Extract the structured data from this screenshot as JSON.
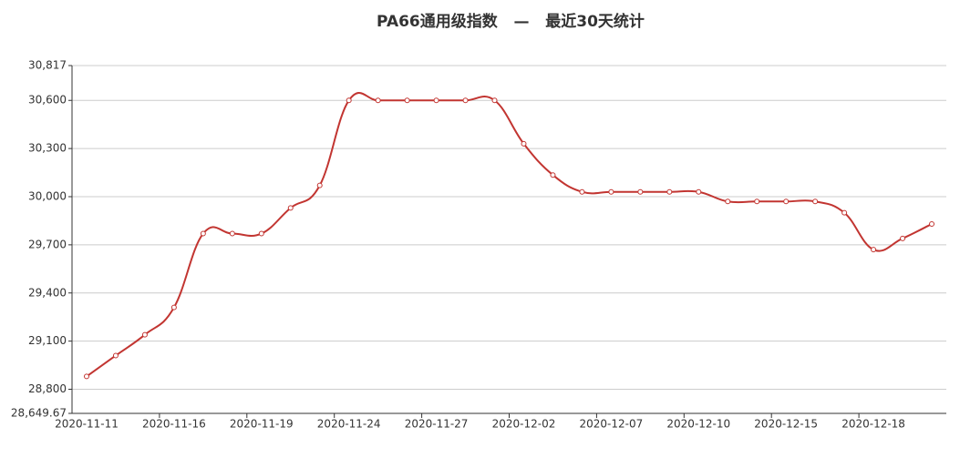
{
  "chart_data": {
    "type": "line",
    "title": "PA66通用级指数   —   最近30天统计",
    "categories": [
      "2020-11-11",
      null,
      null,
      "2020-11-16",
      null,
      null,
      "2020-11-19",
      null,
      null,
      "2020-11-24",
      null,
      null,
      "2020-11-27",
      null,
      null,
      "2020-12-02",
      null,
      null,
      "2020-12-07",
      null,
      null,
      "2020-12-10",
      null,
      null,
      "2020-12-15",
      null,
      null,
      "2020-12-18",
      null,
      null
    ],
    "series": [
      {
        "color": "#c23531",
        "values": [
          28880,
          29010,
          29140,
          29310,
          29770,
          29770,
          29770,
          29930,
          30070,
          30600,
          30600,
          30600,
          30600,
          30600,
          30600,
          30330,
          30135,
          30030,
          30030,
          30030,
          30030,
          30030,
          29970,
          29970,
          29970,
          29970,
          29900,
          29670,
          29740,
          29830
        ]
      }
    ],
    "ylim": [
      28649.67,
      30817
    ],
    "yticks": [
      {
        "value": 28649.67,
        "label": "28,649.67"
      },
      {
        "value": 28800,
        "label": "28,800"
      },
      {
        "value": 29100,
        "label": "29,100"
      },
      {
        "value": 29400,
        "label": "29,400"
      },
      {
        "value": 29700,
        "label": "29,700"
      },
      {
        "value": 30000,
        "label": "30,000"
      },
      {
        "value": 30300,
        "label": "30,300"
      },
      {
        "value": 30600,
        "label": "30,600"
      },
      {
        "value": 30817,
        "label": "30,817"
      }
    ],
    "grid": true
  }
}
